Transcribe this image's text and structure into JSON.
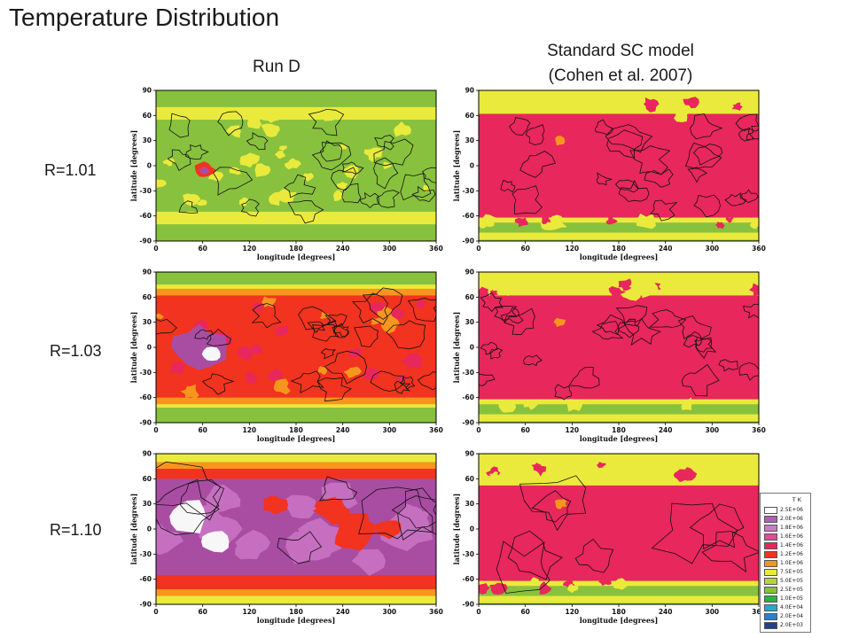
{
  "title": "Temperature Distribution",
  "columns": [
    {
      "heading": "Run D"
    },
    {
      "heading_line1": "Standard SC model",
      "heading_line2": "(Cohen et al. 2007)"
    }
  ],
  "rows": [
    {
      "label": "R=1.01"
    },
    {
      "label": "R=1.03"
    },
    {
      "label": "R=1.10"
    }
  ],
  "colors": {
    "white": "#f7f7f7",
    "purple": "#a94da3",
    "lightpurple": "#c66fc0",
    "pink": "#e8275c",
    "red": "#f2331f",
    "orange": "#f7961d",
    "yellow": "#eaea3c",
    "green": "#88c13e",
    "contour": "#111111"
  },
  "chart_data": [
    {
      "type": "heatmap",
      "panel": "Run D, R=1.01",
      "xlabel": "longitude [degrees]",
      "ylabel": "latitude [degrees]",
      "xticks": [
        0,
        60,
        120,
        180,
        240,
        300,
        360
      ],
      "yticks": [
        -90,
        -60,
        -30,
        0,
        30,
        60,
        90
      ],
      "xlim": [
        0,
        360
      ],
      "ylim": [
        -90,
        90
      ],
      "dominant": "green",
      "polar": "green",
      "equator_band": "green",
      "spots": [
        "red"
      ],
      "contour_density": "high"
    },
    {
      "type": "heatmap",
      "panel": "Standard SC model, R=1.01",
      "xlabel": "longitude [degrees]",
      "ylabel": "latitude [degrees]",
      "xticks": [
        0,
        60,
        120,
        180,
        240,
        300,
        360
      ],
      "yticks": [
        -90,
        -60,
        -30,
        0,
        30,
        60,
        90
      ],
      "xlim": [
        0,
        360
      ],
      "ylim": [
        -90,
        90
      ],
      "dominant": "pink",
      "polar": "yellow",
      "equator_band": "pink",
      "spots": [],
      "contour_density": "high"
    },
    {
      "type": "heatmap",
      "panel": "Run D, R=1.03",
      "xlabel": "longitude [degrees]",
      "ylabel": "latitude [degrees]",
      "xticks": [
        0,
        60,
        120,
        180,
        240,
        300,
        360
      ],
      "yticks": [
        -90,
        -60,
        -30,
        0,
        30,
        60,
        90
      ],
      "xlim": [
        0,
        360
      ],
      "ylim": [
        -90,
        90
      ],
      "dominant": "red",
      "polar": "green",
      "equator_band": "red",
      "spots": [
        "purple",
        "white"
      ],
      "contour_density": "high"
    },
    {
      "type": "heatmap",
      "panel": "Standard SC model, R=1.03",
      "xlabel": "longitude [degrees]",
      "ylabel": "latitude [degrees]",
      "xticks": [
        0,
        60,
        120,
        180,
        240,
        300,
        360
      ],
      "yticks": [
        -90,
        -60,
        -30,
        0,
        30,
        60,
        90
      ],
      "xlim": [
        0,
        360
      ],
      "ylim": [
        -90,
        90
      ],
      "dominant": "pink",
      "polar": "yellow",
      "equator_band": "pink",
      "spots": [],
      "contour_density": "high"
    },
    {
      "type": "heatmap",
      "panel": "Run D, R=1.10",
      "xlabel": "longitude [degrees]",
      "ylabel": "latitude [degrees]",
      "xticks": [
        0,
        60,
        120,
        180,
        240,
        300,
        360
      ],
      "yticks": [
        -90,
        -60,
        -30,
        0,
        30,
        60,
        90
      ],
      "xlim": [
        0,
        360
      ],
      "ylim": [
        -90,
        90
      ],
      "dominant": "purple",
      "polar": "yellow",
      "equator_band": "lightpurple",
      "spots": [
        "white"
      ],
      "contour_density": "low"
    },
    {
      "type": "heatmap",
      "panel": "Standard SC model, R=1.10",
      "xlabel": "longitude [degrees]",
      "ylabel": "latitude [degrees]",
      "xticks": [
        0,
        60,
        120,
        180,
        240,
        300,
        360
      ],
      "yticks": [
        -90,
        -60,
        -30,
        0,
        30,
        60,
        90
      ],
      "xlim": [
        0,
        360
      ],
      "ylim": [
        -90,
        90
      ],
      "dominant": "pink",
      "polar": "yellow",
      "equator_band": "pink",
      "spots": [],
      "contour_density": "low"
    }
  ],
  "legend": {
    "title": "T K",
    "entries": [
      {
        "label": "2.5E+06",
        "color": "#ffffff"
      },
      {
        "label": "2.0E+06",
        "color": "#b061b3"
      },
      {
        "label": "1.8E+06",
        "color": "#c77cc4"
      },
      {
        "label": "1.6E+06",
        "color": "#e04b9a"
      },
      {
        "label": "1.4E+06",
        "color": "#e8275c"
      },
      {
        "label": "1.2E+06",
        "color": "#f2331f"
      },
      {
        "label": "1.0E+06",
        "color": "#f7961d"
      },
      {
        "label": "7.5E+05",
        "color": "#eaea3c"
      },
      {
        "label": "5.0E+05",
        "color": "#b8d632"
      },
      {
        "label": "2.5E+05",
        "color": "#88c13e"
      },
      {
        "label": "1.0E+05",
        "color": "#2fae4a"
      },
      {
        "label": "4.0E+04",
        "color": "#29a9c8"
      },
      {
        "label": "2.0E+04",
        "color": "#2a7fd0"
      },
      {
        "label": "2.0E+03",
        "color": "#23408f"
      }
    ]
  }
}
